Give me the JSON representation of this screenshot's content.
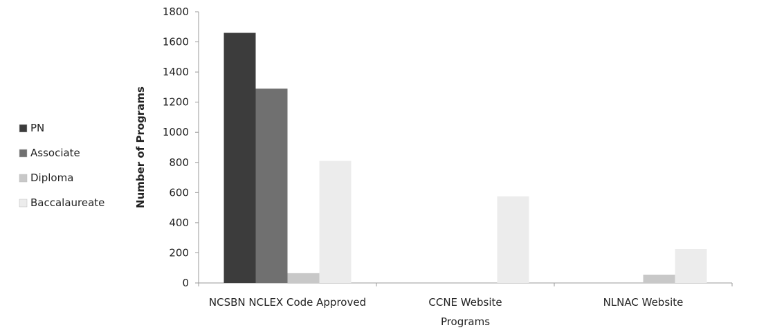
{
  "chart_data": {
    "type": "bar",
    "xlabel": "Programs",
    "ylabel": "Number of Programs",
    "ylim": [
      0,
      1800
    ],
    "yticks": [
      0,
      200,
      400,
      600,
      800,
      1000,
      1200,
      1400,
      1600,
      1800
    ],
    "categories": [
      "NCSBN NCLEX Code Approved",
      "CCNE Website",
      "NLNAC Website"
    ],
    "series": [
      {
        "name": "PN",
        "color": "#3c3c3c",
        "values": [
          1660,
          0,
          0
        ]
      },
      {
        "name": "Associate",
        "color": "#707070",
        "values": [
          1290,
          0,
          0
        ]
      },
      {
        "name": "Diploma",
        "color": "#c8c8c8",
        "values": [
          65,
          0,
          55
        ]
      },
      {
        "name": "Baccalaureate",
        "color": "#ececec",
        "values": [
          810,
          575,
          225
        ]
      }
    ],
    "legend_position": "left",
    "grid": false
  }
}
